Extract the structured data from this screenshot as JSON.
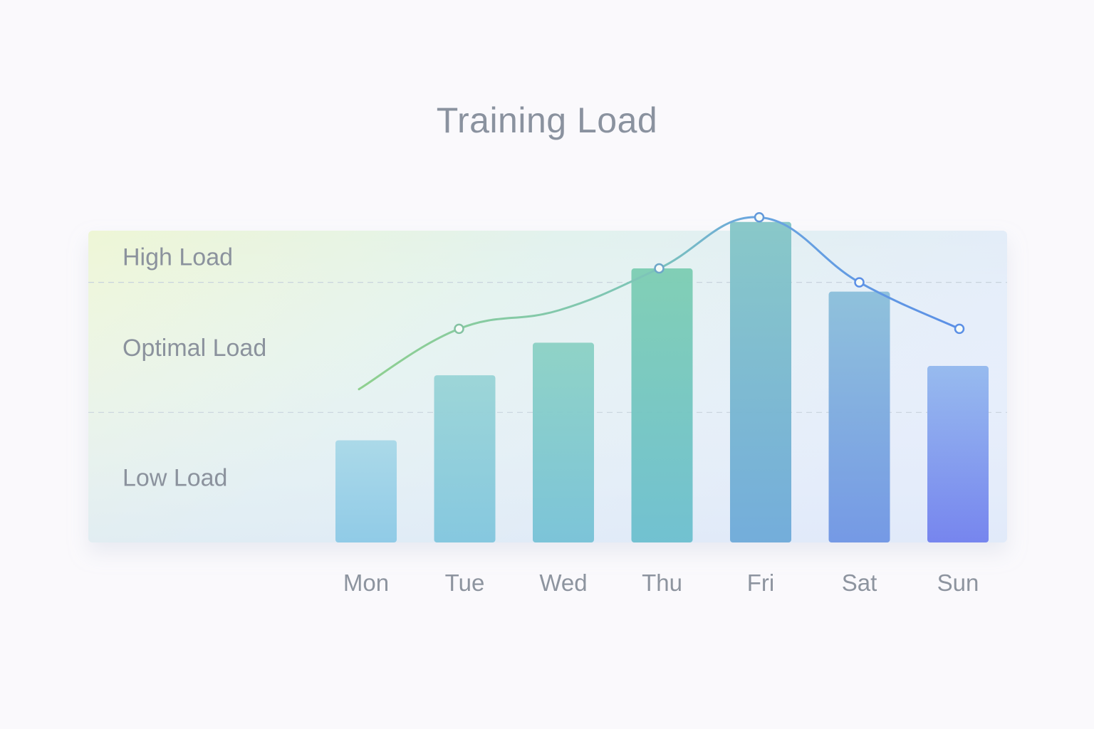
{
  "chart_data": {
    "type": "bar",
    "title": "Training Load",
    "categories": [
      "Mon",
      "Tue",
      "Wed",
      "Thu",
      "Fri",
      "Sat",
      "Sun"
    ],
    "series": [
      {
        "kind": "bar",
        "values": [
          2.2,
          3.6,
          4.3,
          5.9,
          6.9,
          5.4,
          3.8
        ]
      },
      {
        "kind": "line",
        "values": [
          3.3,
          4.6,
          5.0,
          5.9,
          7.0,
          5.6,
          4.6
        ]
      }
    ],
    "zones": [
      {
        "label": "High Load",
        "range": [
          5.6,
          7.0
        ]
      },
      {
        "label": "Optimal Load",
        "range": [
          2.8,
          5.6
        ]
      },
      {
        "label": "Low Load",
        "range": [
          0,
          2.8
        ]
      }
    ],
    "ylim": [
      0,
      8
    ],
    "grid": true,
    "colors": {
      "bar_gradient_start": "#a8d8e8",
      "bar_gradient_mid": "#7ccdb2",
      "bar_gradient_end": "#7180ee",
      "line_start": "#8fd08f",
      "line_end": "#5b8fe6"
    }
  }
}
